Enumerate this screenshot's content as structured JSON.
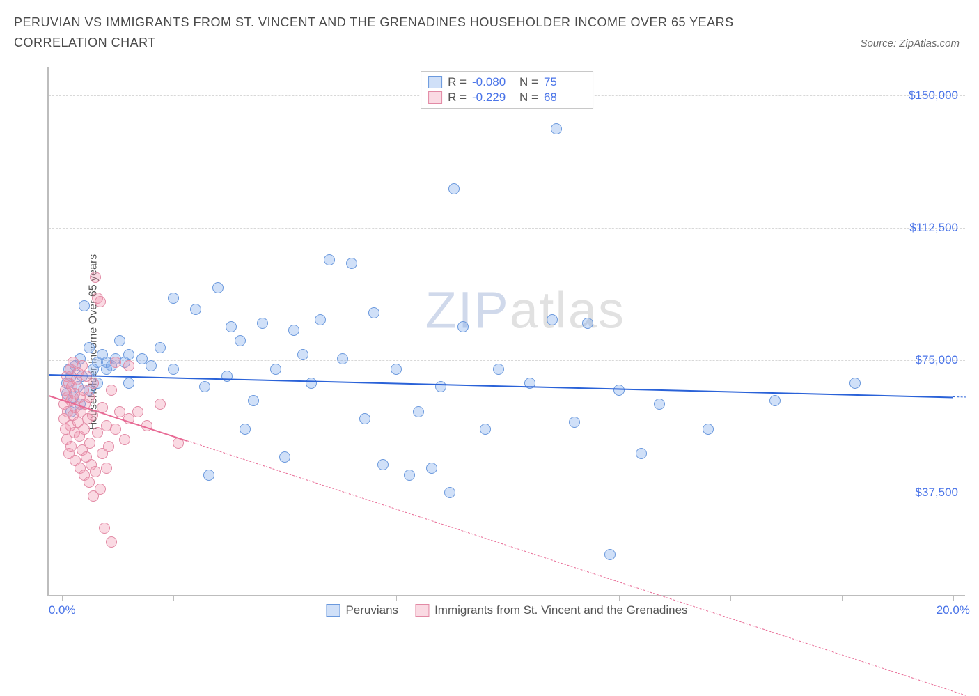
{
  "header": {
    "title": "PERUVIAN VS IMMIGRANTS FROM ST. VINCENT AND THE GRENADINES HOUSEHOLDER INCOME OVER 65 YEARS CORRELATION CHART",
    "source": "Source: ZipAtlas.com"
  },
  "chart": {
    "type": "scatter",
    "y_label": "Householder Income Over 65 years",
    "y_ticks": [
      37500,
      75000,
      112500,
      150000
    ],
    "y_tick_labels": [
      "$37,500",
      "$75,000",
      "$112,500",
      "$150,000"
    ],
    "ylim": [
      8000,
      158000
    ],
    "x_ticks": [
      0,
      2.5,
      5,
      7.5,
      10,
      12.5,
      15,
      17.5,
      20
    ],
    "x_tick_labels": {
      "0": "0.0%",
      "20": "20.0%"
    },
    "xlim": [
      -0.3,
      20.3
    ],
    "background_color": "#ffffff",
    "grid_color": "#d8d8d8",
    "axis_color": "#bdbdbd",
    "marker_radius": 8,
    "series": [
      {
        "name": "Peruvians",
        "color_fill": "rgba(120,165,235,0.35)",
        "color_stroke": "#6b99dd",
        "r": "-0.080",
        "n": "75",
        "trend": {
          "y_at_xmin": 71000,
          "y_at_xmax": 64500,
          "observed_xmax": 20.0,
          "line_color": "#2a62d8"
        },
        "points": [
          [
            0.1,
            65000
          ],
          [
            0.1,
            68000
          ],
          [
            0.15,
            72000
          ],
          [
            0.2,
            60000
          ],
          [
            0.2,
            70000
          ],
          [
            0.25,
            64000
          ],
          [
            0.3,
            73000
          ],
          [
            0.35,
            67000
          ],
          [
            0.4,
            75000
          ],
          [
            0.4,
            62000
          ],
          [
            0.45,
            70000
          ],
          [
            0.5,
            90000
          ],
          [
            0.6,
            66000
          ],
          [
            0.6,
            78000
          ],
          [
            0.7,
            72000
          ],
          [
            0.8,
            74000
          ],
          [
            0.8,
            68000
          ],
          [
            0.9,
            76000
          ],
          [
            1.0,
            74000
          ],
          [
            1.0,
            72000
          ],
          [
            1.1,
            73000
          ],
          [
            1.2,
            75000
          ],
          [
            1.3,
            80000
          ],
          [
            1.4,
            74000
          ],
          [
            1.5,
            68000
          ],
          [
            1.5,
            76000
          ],
          [
            1.8,
            75000
          ],
          [
            2.0,
            73000
          ],
          [
            2.2,
            78000
          ],
          [
            2.5,
            72000
          ],
          [
            2.5,
            92000
          ],
          [
            3.0,
            89000
          ],
          [
            3.2,
            67000
          ],
          [
            3.3,
            42000
          ],
          [
            3.5,
            95000
          ],
          [
            3.7,
            70000
          ],
          [
            3.8,
            84000
          ],
          [
            4.0,
            80000
          ],
          [
            4.1,
            55000
          ],
          [
            4.3,
            63000
          ],
          [
            4.5,
            85000
          ],
          [
            4.8,
            72000
          ],
          [
            5.0,
            47000
          ],
          [
            5.2,
            83000
          ],
          [
            5.4,
            76000
          ],
          [
            5.6,
            68000
          ],
          [
            5.8,
            86000
          ],
          [
            6.0,
            103000
          ],
          [
            6.3,
            75000
          ],
          [
            6.5,
            102000
          ],
          [
            6.8,
            58000
          ],
          [
            7.0,
            88000
          ],
          [
            7.2,
            45000
          ],
          [
            7.5,
            72000
          ],
          [
            7.8,
            42000
          ],
          [
            8.0,
            60000
          ],
          [
            8.3,
            44000
          ],
          [
            8.5,
            67000
          ],
          [
            8.7,
            37000
          ],
          [
            8.8,
            123000
          ],
          [
            9.0,
            84000
          ],
          [
            9.5,
            55000
          ],
          [
            9.8,
            72000
          ],
          [
            10.5,
            68000
          ],
          [
            11.0,
            86000
          ],
          [
            11.1,
            140000
          ],
          [
            11.5,
            57000
          ],
          [
            11.8,
            85000
          ],
          [
            12.3,
            19500
          ],
          [
            12.5,
            66000
          ],
          [
            13.0,
            48000
          ],
          [
            13.4,
            62000
          ],
          [
            14.5,
            55000
          ],
          [
            16.0,
            63000
          ],
          [
            17.8,
            68000
          ]
        ]
      },
      {
        "name": "Immigrants from St. Vincent and the Grenadines",
        "color_fill": "rgba(240,150,175,0.35)",
        "color_stroke": "#e28aa5",
        "r": "-0.229",
        "n": "68",
        "trend": {
          "y_at_xmin": 65000,
          "y_at_xmax": -20000,
          "observed_xmax": 2.8,
          "line_color": "#e86a95"
        },
        "points": [
          [
            0.05,
            62000
          ],
          [
            0.05,
            58000
          ],
          [
            0.08,
            66000
          ],
          [
            0.08,
            55000
          ],
          [
            0.1,
            70000
          ],
          [
            0.1,
            52000
          ],
          [
            0.12,
            64000
          ],
          [
            0.12,
            60000
          ],
          [
            0.15,
            68000
          ],
          [
            0.15,
            48000
          ],
          [
            0.18,
            72000
          ],
          [
            0.18,
            56000
          ],
          [
            0.2,
            63000
          ],
          [
            0.2,
            50000
          ],
          [
            0.22,
            67000
          ],
          [
            0.25,
            59000
          ],
          [
            0.25,
            74000
          ],
          [
            0.28,
            54000
          ],
          [
            0.28,
            65000
          ],
          [
            0.3,
            61000
          ],
          [
            0.3,
            46000
          ],
          [
            0.32,
            69000
          ],
          [
            0.35,
            57000
          ],
          [
            0.35,
            71000
          ],
          [
            0.38,
            53000
          ],
          [
            0.4,
            64000
          ],
          [
            0.4,
            44000
          ],
          [
            0.42,
            60000
          ],
          [
            0.45,
            73000
          ],
          [
            0.45,
            49000
          ],
          [
            0.48,
            66000
          ],
          [
            0.5,
            55000
          ],
          [
            0.5,
            42000
          ],
          [
            0.52,
            62000
          ],
          [
            0.55,
            47000
          ],
          [
            0.55,
            70000
          ],
          [
            0.58,
            58000
          ],
          [
            0.6,
            40000
          ],
          [
            0.6,
            64000
          ],
          [
            0.62,
            51000
          ],
          [
            0.65,
            45000
          ],
          [
            0.68,
            59000
          ],
          [
            0.7,
            36000
          ],
          [
            0.7,
            68000
          ],
          [
            0.75,
            98000
          ],
          [
            0.75,
            43000
          ],
          [
            0.8,
            54000
          ],
          [
            0.8,
            92000
          ],
          [
            0.85,
            38000
          ],
          [
            0.85,
            91000
          ],
          [
            0.9,
            48000
          ],
          [
            0.9,
            61000
          ],
          [
            0.95,
            27000
          ],
          [
            1.0,
            56000
          ],
          [
            1.0,
            44000
          ],
          [
            1.05,
            50000
          ],
          [
            1.1,
            66000
          ],
          [
            1.1,
            23000
          ],
          [
            1.2,
            55000
          ],
          [
            1.2,
            74000
          ],
          [
            1.3,
            60000
          ],
          [
            1.4,
            52000
          ],
          [
            1.5,
            58000
          ],
          [
            1.5,
            73000
          ],
          [
            1.7,
            60000
          ],
          [
            1.9,
            56000
          ],
          [
            2.2,
            62000
          ],
          [
            2.6,
            51000
          ]
        ]
      }
    ],
    "watermark": {
      "part1": "ZIP",
      "part2": "atlas"
    }
  }
}
